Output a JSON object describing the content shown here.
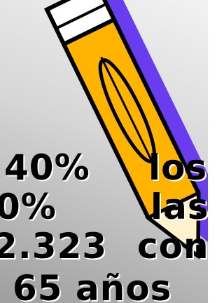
{
  "lines": [
    {
      "left": "40%",
      "right": "los"
    },
    {
      "left": "0%",
      "right": "las"
    },
    {
      "left": "2.323",
      "right": "con"
    },
    {
      "left": "65 años"
    }
  ]
}
